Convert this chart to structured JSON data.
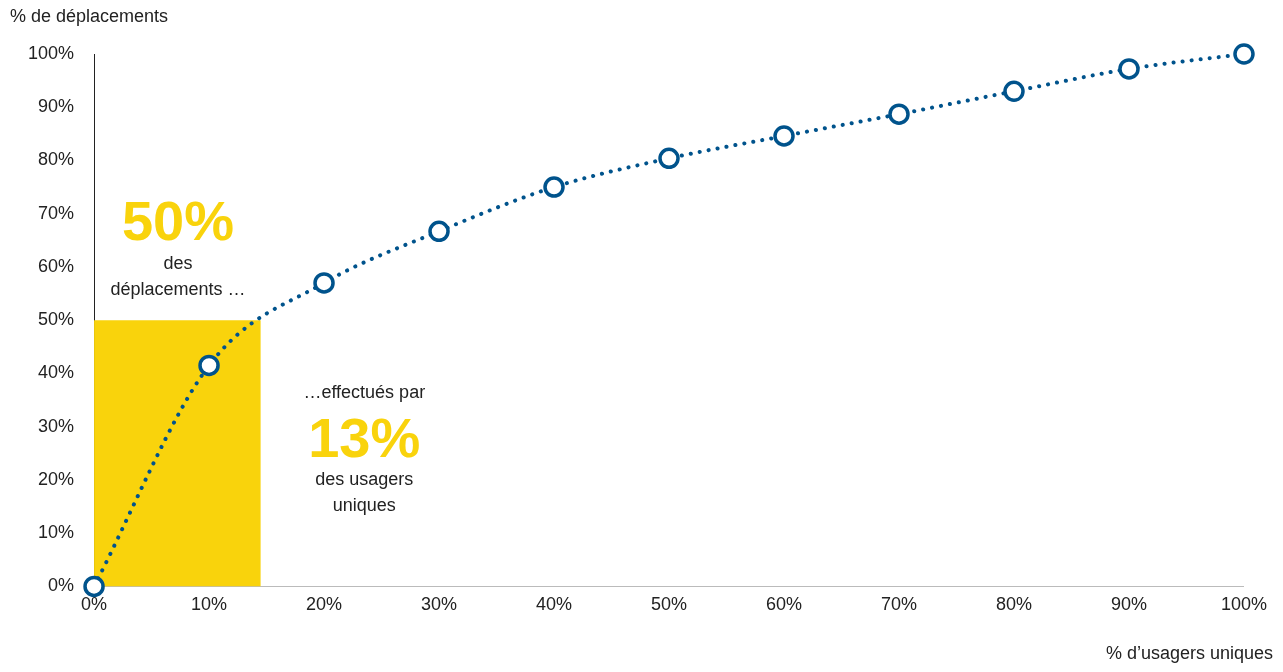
{
  "chart_data": {
    "type": "line",
    "ylabel": "% de déplacements",
    "xlabel": "% d’usagers uniques",
    "xlim": [
      0,
      100
    ],
    "ylim": [
      0,
      100
    ],
    "xticks": [
      {
        "value": 0,
        "label": "0%"
      },
      {
        "value": 10,
        "label": "10%"
      },
      {
        "value": 20,
        "label": "20%"
      },
      {
        "value": 30,
        "label": "30%"
      },
      {
        "value": 40,
        "label": "40%"
      },
      {
        "value": 50,
        "label": "50%"
      },
      {
        "value": 60,
        "label": "60%"
      },
      {
        "value": 70,
        "label": "70%"
      },
      {
        "value": 80,
        "label": "80%"
      },
      {
        "value": 90,
        "label": "90%"
      },
      {
        "value": 100,
        "label": "100%"
      }
    ],
    "yticks": [
      {
        "value": 0,
        "label": "0%"
      },
      {
        "value": 10,
        "label": "10%"
      },
      {
        "value": 20,
        "label": "20%"
      },
      {
        "value": 30,
        "label": "30%"
      },
      {
        "value": 40,
        "label": "40%"
      },
      {
        "value": 50,
        "label": "50%"
      },
      {
        "value": 60,
        "label": "60%"
      },
      {
        "value": 70,
        "label": "70%"
      },
      {
        "value": 80,
        "label": "80%"
      },
      {
        "value": 90,
        "label": "90%"
      },
      {
        "value": 100,
        "label": "100%"
      }
    ],
    "series": [
      {
        "type": "area",
        "color": "#f9d30c",
        "x": [
          0,
          14.5
        ],
        "values": [
          50,
          50
        ]
      },
      {
        "type": "line",
        "color": "#00538c",
        "marker": "circle",
        "line_style": "dotted",
        "x": [
          0,
          10,
          20,
          30,
          40,
          50,
          60,
          70,
          80,
          90,
          100
        ],
        "values": [
          0,
          41.5,
          57,
          66.7,
          75,
          80.4,
          84.6,
          88.7,
          93,
          97.2,
          100
        ]
      }
    ],
    "annotations": [
      "50%",
      "des déplacements …",
      "…effectués par",
      "13%",
      "des usagers uniques"
    ],
    "grid": false,
    "legend": false
  }
}
